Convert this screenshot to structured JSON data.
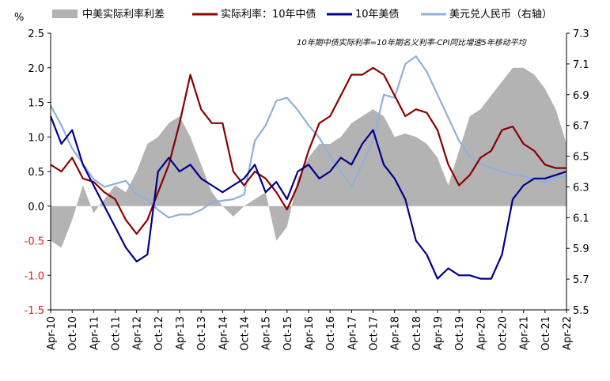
{
  "chart_data": {
    "type": "line",
    "left_axis_unit": "%",
    "annotation": "10年期中债实际利率=10年期名义利率-CPI同比增速5年移动平均",
    "x_ticks": [
      "Apr-10",
      "Oct-10",
      "Apr-11",
      "Oct-11",
      "Apr-12",
      "Oct-12",
      "Apr-13",
      "Oct-13",
      "Apr-14",
      "Oct-14",
      "Apr-15",
      "Oct-15",
      "Apr-16",
      "Oct-16",
      "Apr-17",
      "Oct-17",
      "Apr-18",
      "Oct-18",
      "Apr-19",
      "Oct-19",
      "Apr-20",
      "Oct-20",
      "Apr-21",
      "Oct-21",
      "Apr-22"
    ],
    "y_left_ticks": [
      "2.5",
      "2.0",
      "1.5",
      "1.0",
      "0.5",
      "0.0",
      "-0.5",
      "-1.0",
      "-1.5"
    ],
    "y_left_lim": [
      -1.5,
      2.5
    ],
    "y_right_ticks": [
      "7.3",
      "7.1",
      "6.9",
      "6.7",
      "6.5",
      "6.3",
      "6.1",
      "5.9",
      "5.7",
      "5.5"
    ],
    "y_right_lim": [
      5.5,
      7.3
    ],
    "negative_tick_color": "#e02020",
    "series": [
      {
        "name": "中美实际利率利差",
        "kind": "area",
        "axis": "left",
        "color": "#b3b3b3",
        "x": [
          0,
          0.5,
          1,
          1.5,
          2,
          2.5,
          3,
          3.5,
          4,
          4.5,
          5,
          5.5,
          6,
          6.5,
          7,
          7.5,
          8,
          8.5,
          9,
          9.5,
          10,
          10.5,
          11,
          11.5,
          12,
          12.5,
          13,
          13.5,
          14,
          14.5,
          15,
          15.5,
          16,
          16.5,
          17,
          17.5,
          18,
          18.5,
          19,
          19.5,
          20,
          20.5,
          21,
          21.5,
          22,
          22.5,
          23,
          23.5,
          24
        ],
        "y": [
          -0.5,
          -0.6,
          -0.2,
          0.3,
          -0.1,
          0.1,
          0.3,
          0.2,
          0.5,
          0.9,
          1.0,
          1.2,
          1.3,
          1.0,
          0.6,
          0.2,
          0,
          -0.15,
          0.0,
          0.1,
          0.2,
          -0.5,
          -0.3,
          0.4,
          0.7,
          0.9,
          0.9,
          1.0,
          1.2,
          1.3,
          1.4,
          1.3,
          1.0,
          1.05,
          1.0,
          0.9,
          0.7,
          0.3,
          0.8,
          1.3,
          1.4,
          1.6,
          1.8,
          2.0,
          2.0,
          1.9,
          1.7,
          1.4,
          0.9
        ]
      },
      {
        "name": "实际利率：10年中债",
        "kind": "line",
        "axis": "left",
        "color": "#8b0000",
        "x": [
          0,
          0.5,
          1,
          1.5,
          2,
          2.5,
          3,
          3.5,
          4,
          4.5,
          5,
          5.5,
          6,
          6.5,
          7,
          7.5,
          8,
          8.5,
          9,
          9.5,
          10,
          10.5,
          11,
          11.5,
          12,
          12.5,
          13,
          13.5,
          14,
          14.5,
          15,
          15.5,
          16,
          16.5,
          17,
          17.5,
          18,
          18.5,
          19,
          19.5,
          20,
          20.5,
          21,
          21.5,
          22,
          22.5,
          23,
          23.5,
          24
        ],
        "y": [
          0.6,
          0.5,
          0.7,
          0.4,
          0.35,
          0.2,
          0.1,
          -0.2,
          -0.4,
          -0.2,
          0.2,
          0.6,
          1.2,
          1.9,
          1.4,
          1.2,
          1.2,
          0.5,
          0.3,
          0.5,
          0.4,
          0.2,
          -0.05,
          0.3,
          0.8,
          1.2,
          1.3,
          1.6,
          1.9,
          1.9,
          2.0,
          1.9,
          1.6,
          1.3,
          1.4,
          1.35,
          1.1,
          0.6,
          0.3,
          0.45,
          0.7,
          0.8,
          1.1,
          1.15,
          0.9,
          0.8,
          0.6,
          0.55,
          0.55
        ]
      },
      {
        "name": "10年美债",
        "kind": "line",
        "axis": "left",
        "color": "#00008b",
        "x": [
          0,
          0.5,
          1,
          1.5,
          2,
          2.5,
          3,
          3.5,
          4,
          4.5,
          5,
          5.5,
          6,
          6.5,
          7,
          7.5,
          8,
          8.5,
          9,
          9.5,
          10,
          10.5,
          11,
          11.5,
          12,
          12.5,
          13,
          13.5,
          14,
          14.5,
          15,
          15.5,
          16,
          16.5,
          17,
          17.5,
          18,
          18.5,
          19,
          19.5,
          20,
          20.5,
          21,
          21.5,
          22,
          22.5,
          23,
          23.5,
          24
        ],
        "y": [
          1.3,
          0.9,
          1.1,
          0.6,
          0.3,
          0.0,
          -0.3,
          -0.6,
          -0.8,
          -0.7,
          0.5,
          0.7,
          0.5,
          0.6,
          0.4,
          0.3,
          0.2,
          0.3,
          0.4,
          0.6,
          0.2,
          0.35,
          0.1,
          0.5,
          0.6,
          0.4,
          0.5,
          0.7,
          0.6,
          0.9,
          1.1,
          0.6,
          0.4,
          0.1,
          -0.5,
          -0.7,
          -1.05,
          -0.9,
          -1.0,
          -1.0,
          -1.05,
          -1.05,
          -0.7,
          0.1,
          0.3,
          0.4,
          0.4,
          0.45,
          0.5
        ]
      },
      {
        "name": "美元兑人民币（右轴）",
        "kind": "line",
        "axis": "right",
        "color": "#8fb0d9",
        "x": [
          0,
          0.5,
          1,
          1.5,
          2,
          2.5,
          3,
          3.5,
          4,
          4.5,
          5,
          5.5,
          6,
          6.5,
          7,
          7.5,
          8,
          8.5,
          9,
          9.5,
          10,
          10.5,
          11,
          11.5,
          12,
          12.5,
          13,
          13.5,
          14,
          14.5,
          15,
          15.5,
          16,
          16.5,
          17,
          17.5,
          18,
          18.5,
          19,
          19.5,
          20,
          20.5,
          21,
          21.5,
          22,
          22.5,
          23,
          23.5,
          24
        ],
        "y": [
          6.83,
          6.7,
          6.55,
          6.45,
          6.35,
          6.3,
          6.32,
          6.34,
          6.25,
          6.22,
          6.15,
          6.1,
          6.12,
          6.12,
          6.15,
          6.2,
          6.21,
          6.22,
          6.25,
          6.6,
          6.7,
          6.86,
          6.88,
          6.8,
          6.7,
          6.62,
          6.5,
          6.4,
          6.3,
          6.45,
          6.6,
          6.9,
          6.88,
          7.1,
          7.15,
          7.05,
          6.9,
          6.75,
          6.6,
          6.5,
          6.45,
          6.42,
          6.4,
          6.38,
          6.37,
          6.35,
          6.33,
          6.36,
          6.37
        ]
      }
    ]
  }
}
